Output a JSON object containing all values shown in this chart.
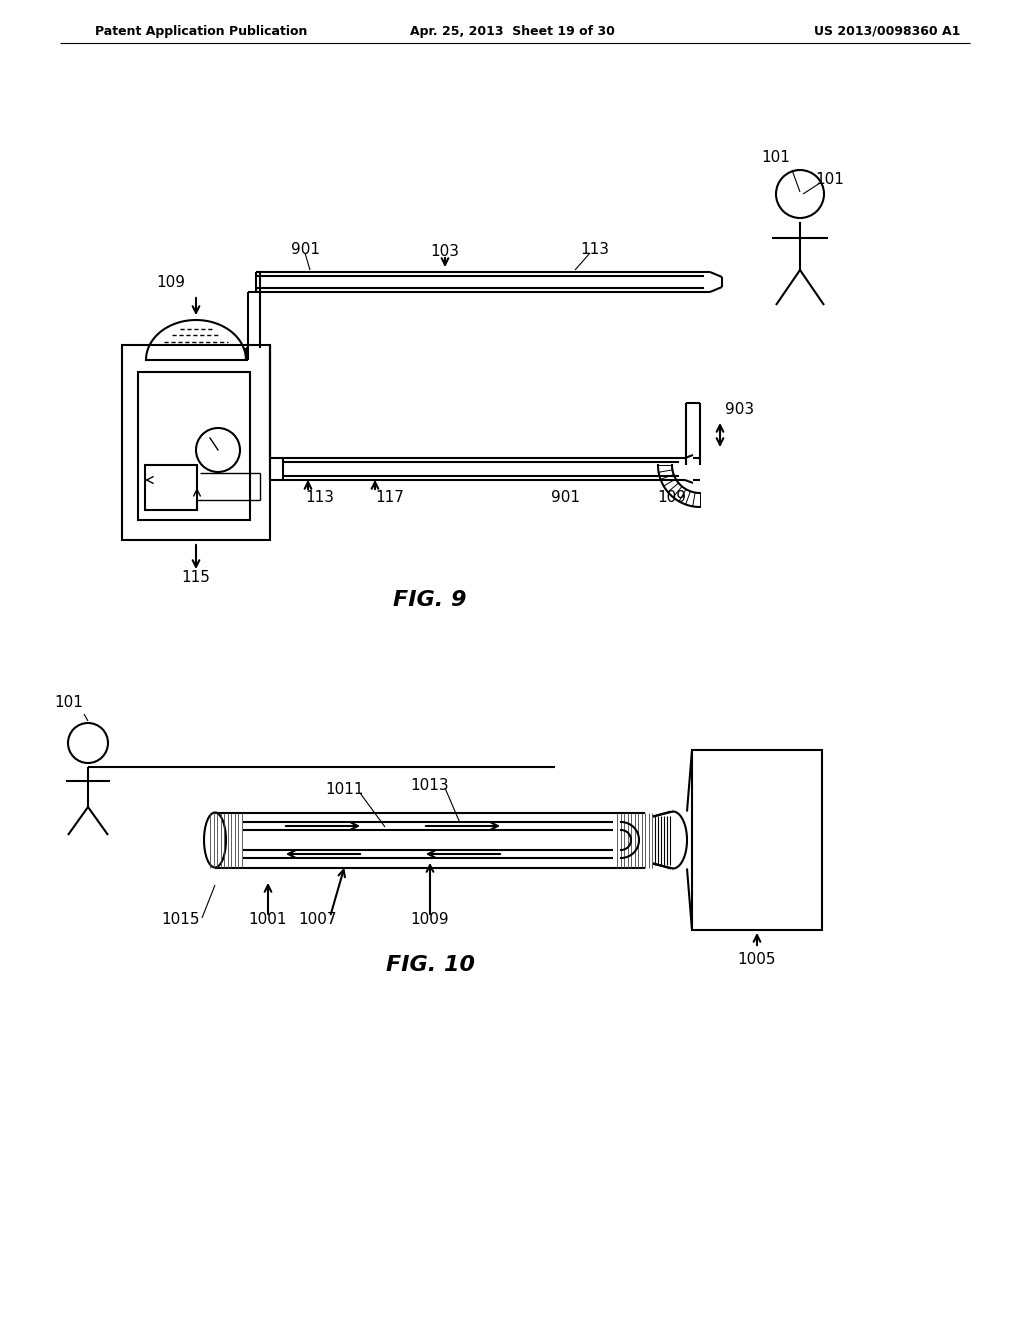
{
  "bg_color": "#ffffff",
  "header_left": "Patent Application Publication",
  "header_mid": "Apr. 25, 2013  Sheet 19 of 30",
  "header_right": "US 2013/0098360 A1",
  "fig9_label": "FIG. 9",
  "fig10_label": "FIG. 10",
  "lw": 1.5
}
